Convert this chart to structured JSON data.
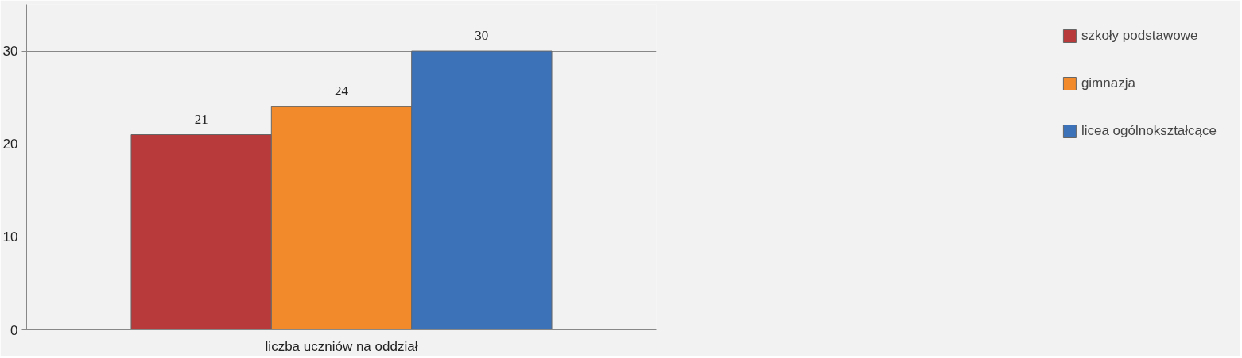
{
  "chart_data": {
    "type": "bar",
    "categories": [
      "liczba uczniów na oddział"
    ],
    "series": [
      {
        "name": "szkoły podstawowe",
        "color": "#b83a3a",
        "values": [
          21
        ]
      },
      {
        "name": "gimnazja",
        "color": "#f28a2c",
        "values": [
          24
        ]
      },
      {
        "name": "licea ogólnokształcące",
        "color": "#3c72b8",
        "values": [
          30
        ]
      }
    ],
    "ylim": [
      0,
      35
    ],
    "yticks": [
      0,
      10,
      20,
      30
    ],
    "grid": "y",
    "legend": "right",
    "data_labels": true
  }
}
